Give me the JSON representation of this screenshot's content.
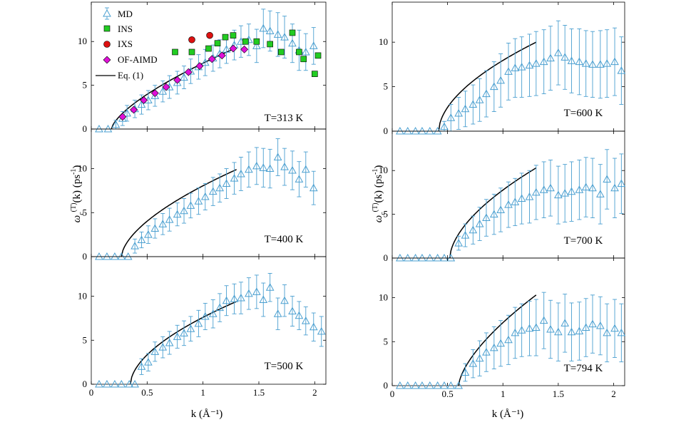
{
  "figure": {
    "xlabel": "k (Å⁻¹)",
    "ylabel_main": "ω",
    "ylabel_sub": "c",
    "ylabel_sup": "(T)",
    "ylabel_tail": "(k) (ps",
    "ylabel_unit_sup": "-1",
    "ylabel_close": ")"
  },
  "legend": {
    "md": "MD",
    "ins": "INS",
    "ixs": "IXS",
    "ofaimd": "OF-AIMD",
    "eq": "Eq. (1)"
  },
  "colors": {
    "md": "#4a9fd0",
    "ins": "#22cc22",
    "ixs": "#dd1111",
    "ofaimd": "#e010d8",
    "eq": "#000000"
  },
  "chart_data": [
    {
      "type": "scatter",
      "title": "T=313 K",
      "xlim": [
        0,
        2.1
      ],
      "ylim": [
        0,
        14.5
      ],
      "xticks": [
        "0",
        "0.5",
        "1",
        "1.5",
        "2"
      ],
      "xtick_values": [
        0,
        0.5,
        1,
        1.5,
        2
      ],
      "yticks": [
        "0",
        "5",
        "10"
      ],
      "ytick_values": [
        0,
        5,
        10
      ],
      "md": {
        "k": [
          0.07,
          0.15,
          0.22,
          0.28,
          0.32,
          0.39,
          0.45,
          0.51,
          0.57,
          0.64,
          0.7,
          0.77,
          0.83,
          0.89,
          0.96,
          1.02,
          1.09,
          1.15,
          1.21,
          1.28,
          1.34,
          1.41,
          1.48,
          1.54,
          1.6,
          1.67,
          1.73,
          1.8,
          1.86,
          1.92,
          1.99
        ],
        "w": [
          0.0,
          0.0,
          0.5,
          1.2,
          1.8,
          2.3,
          2.8,
          3.3,
          3.8,
          4.3,
          4.8,
          5.3,
          5.9,
          6.6,
          7.1,
          7.6,
          8.1,
          8.6,
          9.1,
          9.6,
          10.0,
          10.2,
          9.5,
          11.5,
          11.2,
          10.8,
          10.5,
          9.8,
          9.0,
          8.8,
          9.5
        ],
        "err": [
          0.0,
          0.0,
          0.5,
          0.8,
          0.9,
          1.0,
          1.1,
          1.1,
          1.2,
          1.2,
          1.3,
          1.3,
          1.3,
          1.4,
          1.4,
          1.5,
          1.5,
          1.6,
          1.6,
          1.7,
          1.8,
          1.8,
          1.9,
          2.2,
          2.3,
          2.5,
          2.4,
          2.2,
          2.3,
          2.1,
          2.1
        ]
      },
      "ins": {
        "k": [
          0.75,
          0.9,
          1.05,
          1.13,
          1.2,
          1.27,
          1.38,
          1.48,
          1.6,
          1.7,
          1.8,
          1.86,
          1.9,
          2.0,
          2.03
        ],
        "w": [
          8.8,
          8.8,
          9.2,
          9.8,
          10.5,
          10.7,
          10.0,
          10.0,
          9.7,
          8.8,
          11.0,
          8.8,
          8.0,
          6.3,
          8.4
        ]
      },
      "ixs": {
        "k": [
          0.9,
          1.06
        ],
        "w": [
          10.2,
          10.7
        ]
      },
      "ofaimd": {
        "k": [
          0.28,
          0.38,
          0.47,
          0.57,
          0.67,
          0.77,
          0.87,
          0.97,
          1.08,
          1.17,
          1.27,
          1.37
        ],
        "w": [
          1.4,
          2.2,
          3.3,
          4.1,
          4.8,
          5.6,
          6.5,
          7.2,
          8.0,
          8.4,
          9.2,
          9.1
        ]
      },
      "eq": {
        "k0": 0.18,
        "k1": 1.3,
        "a": 9.3,
        "p": 0.68
      }
    },
    {
      "type": "scatter",
      "title": "T=400 K",
      "xlim": [
        0,
        2.1
      ],
      "ylim": [
        0,
        14.5
      ],
      "xticks": [
        "0",
        "0.5",
        "1",
        "1.5",
        "2"
      ],
      "xtick_values": [
        0,
        0.5,
        1,
        1.5,
        2
      ],
      "yticks": [
        "0",
        "5",
        "10"
      ],
      "ytick_values": [
        0,
        5,
        10
      ],
      "md": {
        "k": [
          0.07,
          0.14,
          0.21,
          0.27,
          0.33,
          0.39,
          0.45,
          0.51,
          0.57,
          0.64,
          0.7,
          0.77,
          0.83,
          0.89,
          0.96,
          1.02,
          1.09,
          1.15,
          1.21,
          1.28,
          1.34,
          1.41,
          1.48,
          1.54,
          1.6,
          1.67,
          1.73,
          1.8,
          1.86,
          1.92,
          1.99
        ],
        "w": [
          0.0,
          0.0,
          0.0,
          0.0,
          0.0,
          1.2,
          1.9,
          2.5,
          3.2,
          3.7,
          4.2,
          4.8,
          5.2,
          5.8,
          6.3,
          6.8,
          7.4,
          7.8,
          8.3,
          8.9,
          9.4,
          9.9,
          10.3,
          10.1,
          10.0,
          11.3,
          10.2,
          9.8,
          8.8,
          9.9,
          7.8
        ],
        "err": [
          0.0,
          0.0,
          0.0,
          0.0,
          0.0,
          0.8,
          0.9,
          1.0,
          1.1,
          1.2,
          1.3,
          1.3,
          1.4,
          1.4,
          1.5,
          1.5,
          1.6,
          1.6,
          1.7,
          1.8,
          1.9,
          2.0,
          2.1,
          2.2,
          2.2,
          2.1,
          2.1,
          2.2,
          2.0,
          2.0,
          1.9
        ]
      },
      "eq": {
        "k0": 0.27,
        "k1": 1.3,
        "a": 9.9,
        "p": 0.6
      }
    },
    {
      "type": "scatter",
      "title": "T=500 K",
      "xlim": [
        0,
        2.1
      ],
      "ylim": [
        0,
        14.5
      ],
      "xticks": [
        "0",
        "0.5",
        "1",
        "1.5",
        "2"
      ],
      "xtick_values": [
        0,
        0.5,
        1,
        1.5,
        2
      ],
      "yticks": [
        "0",
        "5",
        "10"
      ],
      "ytick_values": [
        0,
        5,
        10
      ],
      "md": {
        "k": [
          0.07,
          0.14,
          0.21,
          0.27,
          0.34,
          0.39,
          0.45,
          0.51,
          0.57,
          0.64,
          0.7,
          0.77,
          0.83,
          0.89,
          0.96,
          1.02,
          1.09,
          1.15,
          1.21,
          1.28,
          1.34,
          1.41,
          1.48,
          1.54,
          1.6,
          1.67,
          1.73,
          1.8,
          1.86,
          1.92,
          1.99,
          2.06
        ],
        "w": [
          0.0,
          0.0,
          0.0,
          0.0,
          0.0,
          0.0,
          2.0,
          2.5,
          3.7,
          4.2,
          4.7,
          5.4,
          5.8,
          6.3,
          6.9,
          7.7,
          8.0,
          8.7,
          9.5,
          9.7,
          9.8,
          10.3,
          10.5,
          9.6,
          11.0,
          8.0,
          9.5,
          8.3,
          7.8,
          7.2,
          6.5,
          6.0
        ],
        "err": [
          0.0,
          0.0,
          0.0,
          0.0,
          0.0,
          0.0,
          0.9,
          1.0,
          1.1,
          1.2,
          1.3,
          1.3,
          1.4,
          1.4,
          1.5,
          1.5,
          1.6,
          1.6,
          1.7,
          1.7,
          1.8,
          1.8,
          1.9,
          1.9,
          1.6,
          1.8,
          1.8,
          1.7,
          1.6,
          1.6,
          1.6,
          1.7
        ]
      },
      "eq": {
        "k0": 0.35,
        "k1": 1.3,
        "a": 9.4,
        "p": 0.56
      }
    },
    {
      "type": "scatter",
      "title": "T=600 K",
      "xlim": [
        0,
        2.1
      ],
      "ylim": [
        0,
        14.5
      ],
      "xticks": [
        "0",
        "0.5",
        "1",
        "1.5",
        "2"
      ],
      "xtick_values": [
        0,
        0.5,
        1,
        1.5,
        2
      ],
      "yticks": [
        "0",
        "5",
        "10"
      ],
      "ytick_values": [
        0,
        5,
        10
      ],
      "md": {
        "k": [
          0.07,
          0.14,
          0.21,
          0.27,
          0.34,
          0.41,
          0.47,
          0.53,
          0.6,
          0.66,
          0.73,
          0.79,
          0.85,
          0.92,
          0.98,
          1.05,
          1.11,
          1.17,
          1.24,
          1.3,
          1.37,
          1.43,
          1.5,
          1.56,
          1.62,
          1.69,
          1.75,
          1.81,
          1.88,
          1.94,
          2.01,
          2.07
        ],
        "w": [
          0.0,
          0.0,
          0.0,
          0.0,
          0.0,
          0.0,
          0.5,
          1.5,
          2.0,
          2.5,
          3.0,
          3.5,
          4.2,
          5.0,
          5.7,
          6.7,
          7.1,
          7.2,
          7.4,
          7.6,
          7.8,
          8.2,
          8.8,
          8.3,
          7.9,
          7.8,
          7.6,
          7.5,
          7.5,
          7.6,
          7.8,
          6.8
        ],
        "err": [
          0.0,
          0.0,
          0.0,
          0.0,
          0.0,
          0.0,
          0.6,
          1.5,
          1.8,
          2.0,
          2.2,
          2.4,
          2.6,
          2.8,
          3.0,
          3.2,
          3.3,
          3.4,
          3.5,
          3.6,
          3.6,
          3.6,
          3.6,
          3.6,
          3.6,
          3.7,
          3.7,
          3.7,
          3.8,
          3.8,
          3.8,
          3.8
        ]
      },
      "eq": {
        "k0": 0.42,
        "k1": 1.3,
        "a": 10.0,
        "p": 0.55
      }
    },
    {
      "type": "scatter",
      "title": "T=700 K",
      "xlim": [
        0,
        2.1
      ],
      "ylim": [
        0,
        14.5
      ],
      "xticks": [
        "0",
        "0.5",
        "1",
        "1.5",
        "2"
      ],
      "xtick_values": [
        0,
        0.5,
        1,
        1.5,
        2
      ],
      "yticks": [
        "0",
        "5",
        "10"
      ],
      "ytick_values": [
        0,
        5,
        10
      ],
      "md": {
        "k": [
          0.07,
          0.14,
          0.21,
          0.27,
          0.34,
          0.41,
          0.47,
          0.53,
          0.6,
          0.66,
          0.73,
          0.79,
          0.85,
          0.92,
          0.98,
          1.05,
          1.11,
          1.17,
          1.24,
          1.3,
          1.37,
          1.43,
          1.5,
          1.56,
          1.62,
          1.69,
          1.75,
          1.81,
          1.88,
          1.94,
          2.01,
          2.07
        ],
        "w": [
          0.0,
          0.0,
          0.0,
          0.0,
          0.0,
          0.0,
          0.0,
          0.0,
          1.7,
          2.6,
          3.2,
          3.9,
          4.6,
          5.0,
          5.5,
          6.1,
          6.4,
          6.8,
          7.0,
          7.5,
          7.8,
          8.0,
          7.2,
          7.4,
          7.6,
          7.8,
          8.1,
          8.0,
          7.3,
          9.0,
          8.0,
          8.5
        ],
        "err": [
          0.0,
          0.0,
          0.0,
          0.0,
          0.0,
          0.0,
          0.0,
          0.0,
          0.8,
          1.3,
          1.6,
          1.9,
          2.1,
          2.3,
          2.5,
          2.6,
          2.7,
          2.9,
          3.0,
          3.1,
          3.2,
          3.2,
          3.3,
          3.3,
          3.4,
          3.4,
          3.4,
          3.4,
          3.4,
          3.4,
          3.4,
          3.4
        ]
      },
      "eq": {
        "k0": 0.52,
        "k1": 1.3,
        "a": 10.3,
        "p": 0.58
      }
    },
    {
      "type": "scatter",
      "title": "T=794 K",
      "xlim": [
        0,
        2.1
      ],
      "ylim": [
        0,
        14.5
      ],
      "xticks": [
        "0",
        "0.5",
        "1",
        "1.5",
        "2"
      ],
      "xtick_values": [
        0,
        0.5,
        1,
        1.5,
        2
      ],
      "yticks": [
        "0",
        "5",
        "10"
      ],
      "ytick_values": [
        0,
        5,
        10
      ],
      "md": {
        "k": [
          0.07,
          0.14,
          0.21,
          0.27,
          0.34,
          0.41,
          0.47,
          0.53,
          0.6,
          0.66,
          0.73,
          0.79,
          0.85,
          0.92,
          0.98,
          1.05,
          1.11,
          1.17,
          1.24,
          1.3,
          1.37,
          1.43,
          1.5,
          1.56,
          1.62,
          1.69,
          1.75,
          1.81,
          1.88,
          1.94,
          2.01,
          2.07
        ],
        "w": [
          0.0,
          0.0,
          0.0,
          0.0,
          0.0,
          0.0,
          0.0,
          0.0,
          0.0,
          1.5,
          2.5,
          3.1,
          3.8,
          4.3,
          4.8,
          5.2,
          6.0,
          6.3,
          6.5,
          6.6,
          7.4,
          6.4,
          6.1,
          7.1,
          6.1,
          6.2,
          6.6,
          7.0,
          6.8,
          6.0,
          6.5,
          6.0
        ],
        "err": [
          0.0,
          0.0,
          0.0,
          0.0,
          0.0,
          0.0,
          0.0,
          0.0,
          0.0,
          1.0,
          1.6,
          2.0,
          2.2,
          2.4,
          2.6,
          2.8,
          2.9,
          3.0,
          3.1,
          3.2,
          3.2,
          3.3,
          3.3,
          3.3,
          3.3,
          3.3,
          3.3,
          3.3,
          3.3,
          3.3,
          3.3,
          3.3
        ]
      },
      "eq": {
        "k0": 0.6,
        "k1": 1.3,
        "a": 10.3,
        "p": 0.65
      }
    }
  ]
}
